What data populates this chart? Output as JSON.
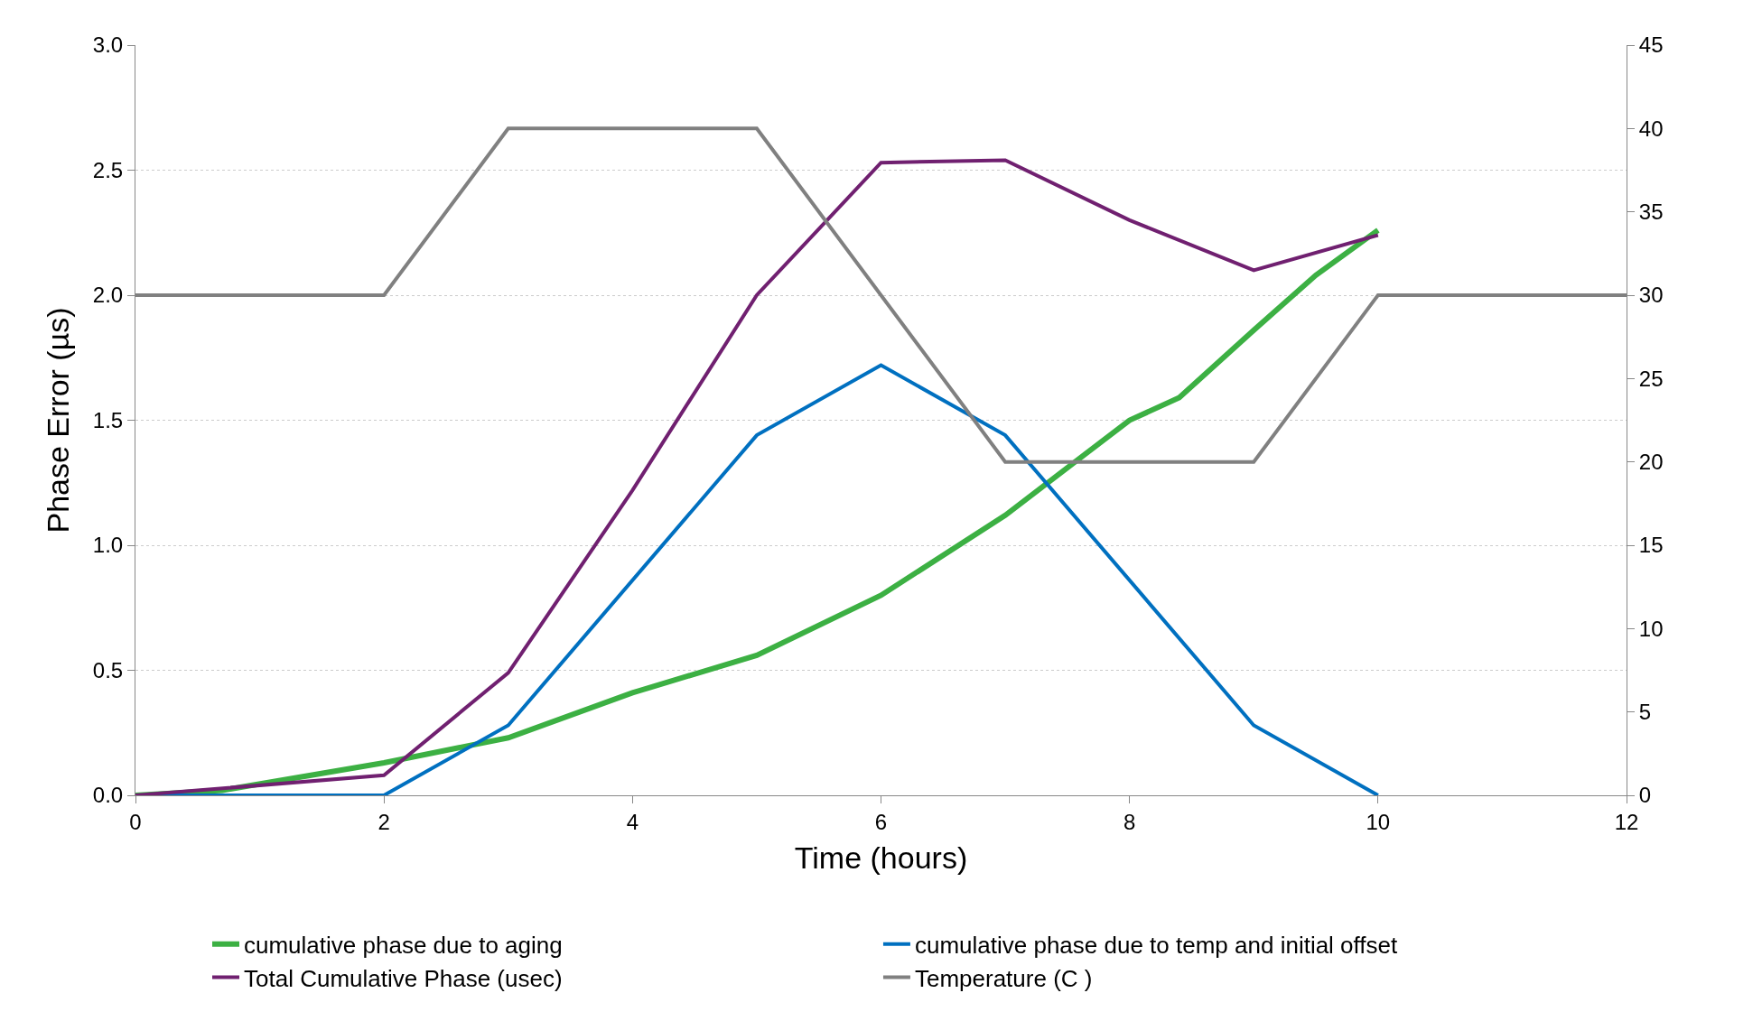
{
  "chart_data": {
    "type": "line",
    "xlabel": "Time (hours)",
    "ylabel": "Phase Error (µs)",
    "xlim": [
      0,
      12
    ],
    "xticks": [
      0,
      2,
      4,
      6,
      8,
      10,
      12
    ],
    "ylim": [
      0,
      3
    ],
    "yticks": [
      {
        "value": 0,
        "label": "0.0"
      },
      {
        "value": 0.5,
        "label": "0.5"
      },
      {
        "value": 1,
        "label": "1.0"
      },
      {
        "value": 1.5,
        "label": "1.5"
      },
      {
        "value": 2,
        "label": "2.0"
      },
      {
        "value": 2.5,
        "label": "2.5"
      },
      {
        "value": 3,
        "label": "3.0"
      }
    ],
    "y2lim": [
      0,
      45
    ],
    "y2ticks": [
      0,
      5,
      10,
      15,
      20,
      25,
      30,
      35,
      40,
      45
    ],
    "grid": "y",
    "legend": "bottom",
    "marker": "none",
    "line_style": "solid",
    "series": [
      {
        "name": "cumulative phase due to aging",
        "color": "#3cb043",
        "x": [
          0,
          0.7,
          2,
          3,
          4,
          5,
          6,
          7,
          8,
          8.4,
          9,
          9.5,
          10
        ],
        "values": [
          0,
          0.02,
          0.13,
          0.23,
          0.41,
          0.56,
          0.8,
          1.12,
          1.5,
          1.59,
          1.86,
          2.08,
          2.26
        ]
      },
      {
        "name": "cumulative phase due to temp and initial offset",
        "color": "#0070c0",
        "x": [
          0,
          2,
          3,
          5,
          6,
          7,
          9,
          10
        ],
        "values": [
          0,
          0,
          0.28,
          1.44,
          1.72,
          1.44,
          0.28,
          0
        ]
      },
      {
        "name": "Total Cumulative Phase (usec)",
        "color": "#702070",
        "x": [
          0,
          2,
          3,
          4,
          5,
          6,
          7,
          8,
          9,
          10
        ],
        "values": [
          0,
          0.08,
          0.49,
          1.22,
          2.0,
          2.53,
          2.54,
          2.3,
          2.1,
          2.24
        ]
      },
      {
        "name": "Temperature (C )",
        "color": "#808080",
        "axis": "y2",
        "x": [
          0,
          2,
          3,
          5,
          7,
          9,
          10,
          12
        ],
        "values": [
          30,
          30,
          40,
          40,
          20,
          20,
          30,
          30
        ]
      }
    ]
  }
}
